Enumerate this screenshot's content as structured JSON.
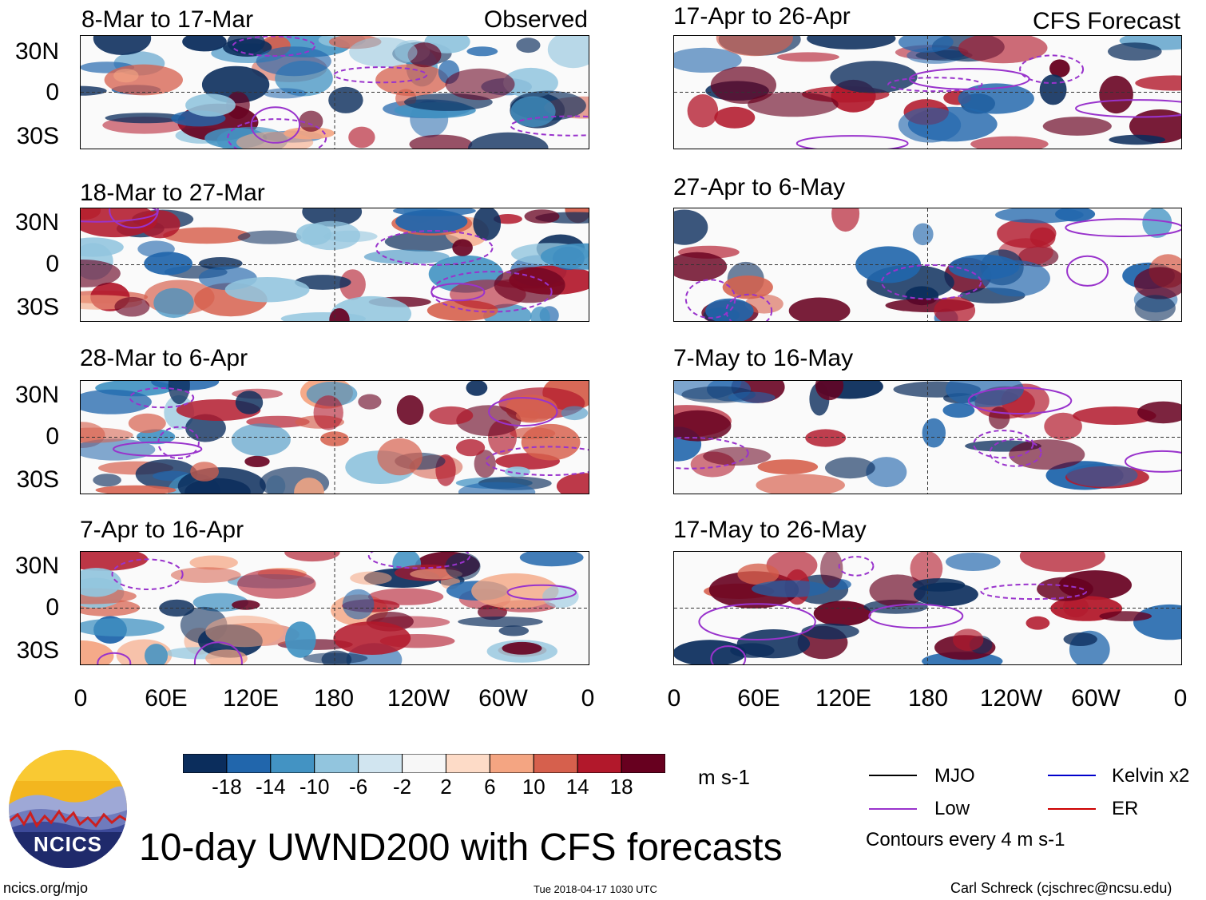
{
  "panels_left": [
    {
      "title": "8-Mar to 17-Mar",
      "tag": "Observed"
    },
    {
      "title": "18-Mar to 27-Mar",
      "tag": ""
    },
    {
      "title": "28-Mar to 6-Apr",
      "tag": ""
    },
    {
      "title": "7-Apr to 16-Apr",
      "tag": ""
    }
  ],
  "panels_right": [
    {
      "title": "17-Apr to 26-Apr",
      "tag": "CFS Forecast"
    },
    {
      "title": "27-Apr to 6-May",
      "tag": ""
    },
    {
      "title": "7-May to 16-May",
      "tag": ""
    },
    {
      "title": "17-May to 26-May",
      "tag": ""
    }
  ],
  "lat_labels": [
    "30N",
    "0",
    "30S"
  ],
  "lon_labels": [
    "0",
    "60E",
    "120E",
    "180",
    "120W",
    "60W",
    "0"
  ],
  "colorbar": {
    "labels": [
      "-18",
      "-14",
      "-10",
      "-6",
      "-2",
      "2",
      "6",
      "10",
      "14",
      "18"
    ],
    "colors": [
      "#0b2d5c",
      "#2166ac",
      "#4393c3",
      "#92c5de",
      "#d1e5f0",
      "#f7f7f7",
      "#fddbc7",
      "#f4a582",
      "#d6604d",
      "#b2182b",
      "#67001f"
    ],
    "units": "m s-1"
  },
  "legend": {
    "mjo": "MJO",
    "kelvin": "Kelvin x2",
    "low": "Low",
    "er": "ER",
    "contours": "Contours every 4 m s-1",
    "mjo_color": "#000000",
    "kelvin_color": "#0000cc",
    "low_color": "#9933cc",
    "er_color": "#cc0000"
  },
  "logo_text": "NCICS",
  "main_title": "10-day UWND200 with CFS forecasts",
  "footer": {
    "url": "ncics.org/mjo",
    "timestamp": "Tue 2018-04-17 1030 UTC",
    "author": "Carl Schreck (cjschrec@ncsu.edu)"
  }
}
